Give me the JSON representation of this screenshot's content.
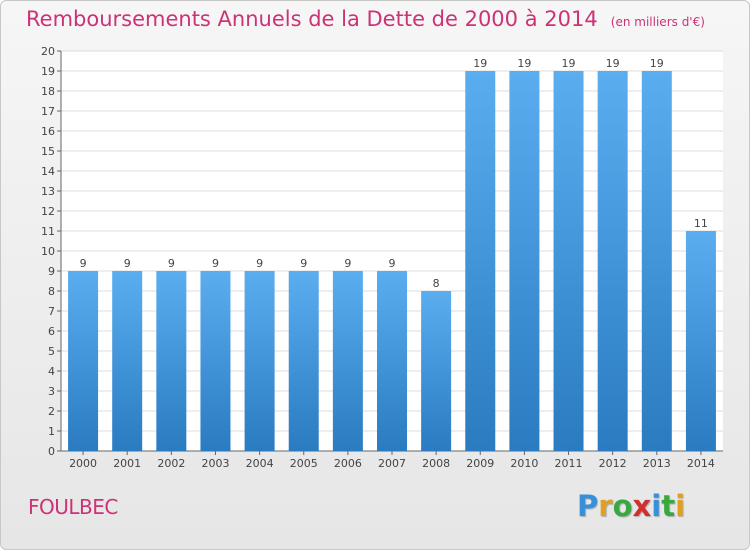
{
  "chart_data": {
    "type": "bar",
    "title": "Remboursements Annuels de la Dette de 2000 à 2014",
    "unit_note": "(en milliers d'€)",
    "categories": [
      "2000",
      "2001",
      "2002",
      "2003",
      "2004",
      "2005",
      "2006",
      "2007",
      "2008",
      "2009",
      "2010",
      "2011",
      "2012",
      "2013",
      "2014"
    ],
    "values": [
      9,
      9,
      9,
      9,
      9,
      9,
      9,
      9,
      8,
      19,
      19,
      19,
      19,
      19,
      11
    ],
    "ylim": [
      0,
      20
    ],
    "yticks": [
      0,
      1,
      2,
      3,
      4,
      5,
      6,
      7,
      8,
      9,
      10,
      11,
      12,
      13,
      14,
      15,
      16,
      17,
      18,
      19,
      20
    ],
    "xlabel": "",
    "ylabel": "",
    "grid": true,
    "bar_color_top": "#5aaef0",
    "bar_color_bottom": "#2a7bc0"
  },
  "commune": "FOULBEC",
  "logo": {
    "letters": [
      "P",
      "r",
      "o",
      "x",
      "i",
      "t",
      "i"
    ],
    "colors": [
      "#3a8fd9",
      "#e0a020",
      "#3aa840",
      "#d03030",
      "#3a8fd9",
      "#3aa840",
      "#e0a020"
    ]
  }
}
